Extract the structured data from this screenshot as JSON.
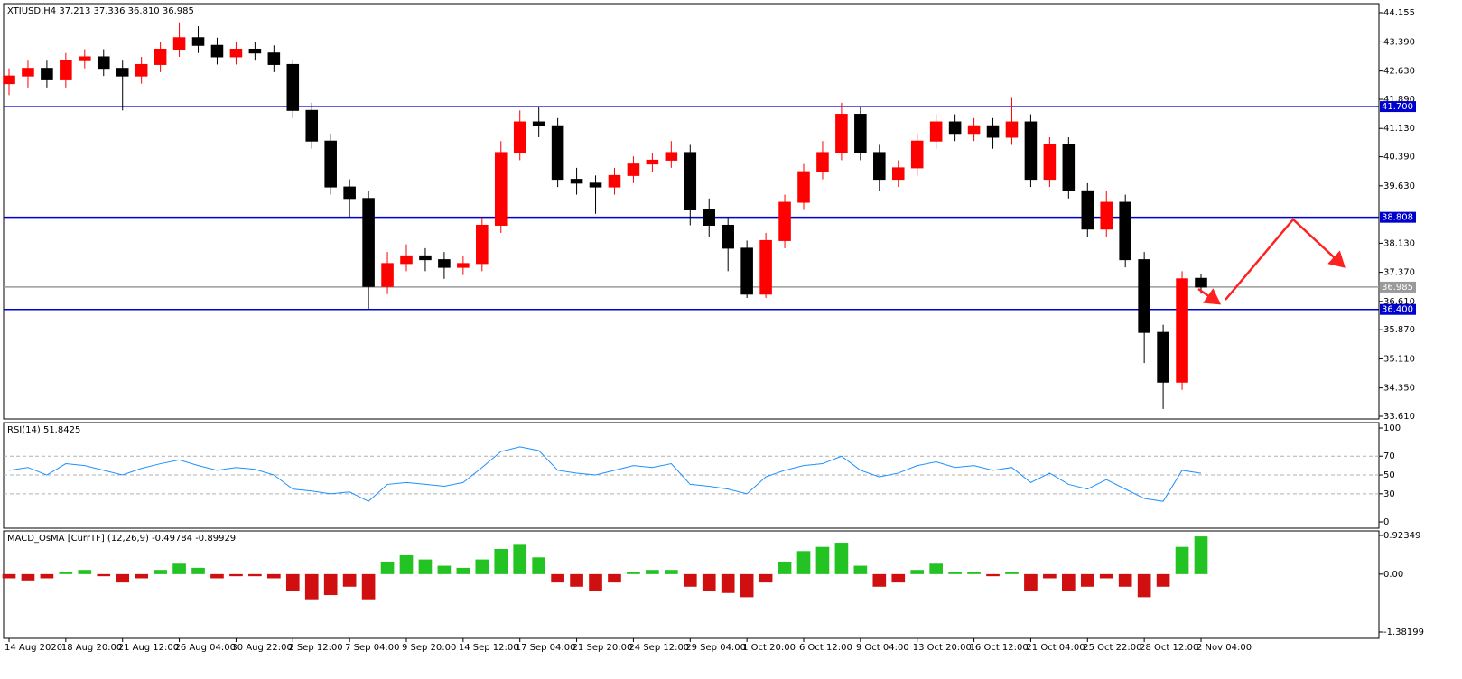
{
  "chart_data": [
    {
      "type": "candlestick",
      "title": "XTIUSD,H4  37.213 37.336 36.810 36.985",
      "categories": [
        "14 Aug 2020",
        null,
        null,
        "18 Aug 20:00",
        null,
        null,
        "21 Aug 12:00",
        null,
        null,
        "26 Aug 04:00",
        null,
        null,
        "30 Aug 22:00",
        null,
        null,
        "2 Sep 12:00",
        null,
        null,
        "7 Sep 04:00",
        null,
        null,
        "9 Sep 20:00",
        null,
        null,
        "14 Sep 12:00",
        null,
        null,
        "17 Sep 04:00",
        null,
        null,
        "21 Sep 20:00",
        null,
        null,
        "24 Sep 12:00",
        null,
        null,
        "29 Sep 04:00",
        null,
        null,
        "1 Oct 20:00",
        null,
        null,
        "6 Oct 12:00",
        null,
        null,
        "9 Oct 04:00",
        null,
        null,
        "13 Oct 20:00",
        null,
        null,
        "16 Oct 12:00",
        null,
        null,
        "21 Oct 04:00",
        null,
        null,
        "25 Oct 22:00",
        null,
        null,
        "28 Oct 12:00",
        null,
        null,
        "2 Nov 04:00"
      ],
      "open": [
        42.3,
        42.5,
        42.7,
        42.4,
        42.9,
        43.0,
        42.7,
        42.5,
        42.8,
        43.2,
        43.5,
        43.3,
        43.0,
        43.2,
        43.1,
        42.8,
        41.6,
        40.8,
        39.6,
        39.3,
        37.0,
        37.6,
        37.8,
        37.7,
        37.5,
        37.6,
        38.6,
        40.5,
        41.3,
        41.2,
        39.8,
        39.7,
        39.6,
        39.9,
        40.2,
        40.3,
        40.5,
        39.0,
        38.6,
        38.0,
        36.8,
        38.2,
        39.2,
        40.0,
        40.5,
        41.5,
        40.5,
        39.8,
        40.1,
        40.8,
        41.3,
        41.0,
        41.2,
        40.9,
        41.3,
        39.8,
        40.7,
        39.5,
        38.5,
        39.2,
        37.7,
        35.8,
        34.5,
        37.213
      ],
      "high": [
        42.7,
        42.9,
        42.9,
        43.1,
        43.2,
        43.2,
        42.9,
        43.0,
        43.4,
        43.9,
        43.8,
        43.5,
        43.4,
        43.4,
        43.3,
        42.9,
        41.8,
        41.0,
        39.8,
        39.5,
        37.9,
        38.1,
        38.0,
        37.9,
        37.8,
        38.8,
        40.8,
        41.6,
        41.7,
        41.4,
        40.1,
        39.9,
        40.1,
        40.4,
        40.5,
        40.8,
        40.7,
        39.3,
        38.8,
        38.2,
        38.4,
        39.4,
        40.2,
        40.8,
        41.8,
        41.7,
        40.7,
        40.3,
        41.0,
        41.5,
        41.5,
        41.4,
        41.4,
        41.95,
        41.5,
        40.9,
        40.9,
        39.7,
        39.5,
        39.4,
        37.9,
        36.0,
        37.4,
        37.336
      ],
      "low": [
        42.0,
        42.2,
        42.2,
        42.2,
        42.7,
        42.5,
        41.6,
        42.3,
        42.6,
        43.0,
        43.1,
        42.8,
        42.8,
        42.9,
        42.6,
        41.4,
        40.6,
        39.4,
        38.8,
        36.4,
        36.8,
        37.4,
        37.4,
        37.2,
        37.3,
        37.4,
        38.4,
        40.3,
        40.9,
        39.6,
        39.4,
        38.9,
        39.4,
        39.7,
        40.0,
        40.1,
        38.6,
        38.3,
        37.4,
        36.7,
        36.7,
        38.0,
        39.0,
        39.8,
        40.3,
        40.3,
        39.5,
        39.6,
        39.9,
        40.6,
        40.8,
        40.8,
        40.6,
        40.7,
        39.6,
        39.6,
        39.3,
        38.3,
        38.3,
        37.5,
        35.0,
        33.8,
        34.3,
        36.81
      ],
      "close": [
        42.5,
        42.7,
        42.4,
        42.9,
        43.0,
        42.7,
        42.5,
        42.8,
        43.2,
        43.5,
        43.3,
        43.0,
        43.2,
        43.1,
        42.8,
        41.6,
        40.8,
        39.6,
        39.3,
        37.0,
        37.6,
        37.8,
        37.7,
        37.5,
        37.6,
        38.6,
        40.5,
        41.3,
        41.2,
        39.8,
        39.7,
        39.6,
        39.9,
        40.2,
        40.3,
        40.5,
        39.0,
        38.6,
        38.0,
        36.8,
        38.2,
        39.2,
        40.0,
        40.5,
        41.5,
        40.5,
        39.8,
        40.1,
        40.8,
        41.3,
        41.0,
        41.2,
        40.9,
        41.3,
        39.8,
        40.7,
        39.5,
        38.5,
        39.2,
        37.7,
        35.8,
        34.5,
        37.2,
        36.985
      ],
      "up_color": "#ff0000",
      "down_color": "#000000",
      "ylim": [
        33.539,
        44.391
      ],
      "yticks": [
        44.155,
        {
          "value": 43.39,
          "label": "43.390"
        },
        {
          "value": 42.63,
          "label": "42.630"
        },
        {
          "value": 41.89,
          "label": "41.890"
        },
        {
          "value": 41.13,
          "label": "41.130"
        },
        {
          "value": 40.39,
          "label": "40.390"
        },
        {
          "value": 39.63,
          "label": "39.630"
        },
        {
          "value": 38.13,
          "label": "38.130"
        },
        {
          "value": 37.37,
          "label": "37.370"
        },
        {
          "value": 36.61,
          "label": "36.610"
        },
        {
          "value": 35.87,
          "label": "35.870"
        },
        {
          "value": 35.11,
          "label": "35.110"
        },
        {
          "value": 34.35,
          "label": "34.350"
        },
        {
          "value": 33.61,
          "label": "33.610"
        }
      ],
      "hlines": [
        {
          "value": 41.7,
          "label": "41.700",
          "color": "#0000cd"
        },
        {
          "value": 38.808,
          "label": "38.808",
          "color": "#0000cd"
        },
        {
          "value": 36.4,
          "label": "36.400",
          "color": "#0000cd"
        },
        {
          "value": 36.985,
          "label": "36.985",
          "color": "#9a9a9a"
        }
      ]
    },
    {
      "type": "line",
      "title": "RSI(14) 51.8425",
      "color": "#1e90ff",
      "values": [
        55,
        58,
        50,
        62,
        60,
        55,
        50,
        57,
        62,
        66,
        60,
        55,
        58,
        56,
        50,
        35,
        33,
        30,
        32,
        22,
        40,
        42,
        40,
        38,
        42,
        58,
        75,
        80,
        76,
        55,
        52,
        50,
        55,
        60,
        58,
        62,
        40,
        38,
        35,
        30,
        48,
        55,
        60,
        62,
        70,
        55,
        48,
        52,
        60,
        64,
        58,
        60,
        55,
        58,
        42,
        52,
        40,
        35,
        45,
        35,
        25,
        22,
        55,
        51.8425
      ],
      "ylim": [
        -6.7,
        105.8
      ],
      "yticks": [
        100,
        70,
        50,
        30,
        0
      ],
      "grid": true
    },
    {
      "type": "bar",
      "title": "MACD_OsMA [CurrTF] (12,26,9) -0.49784 -0.89929",
      "values": [
        -0.1,
        -0.15,
        -0.1,
        0.05,
        0.1,
        -0.05,
        -0.2,
        -0.1,
        0.1,
        0.25,
        0.15,
        -0.1,
        -0.05,
        -0.05,
        -0.1,
        -0.4,
        -0.6,
        -0.5,
        -0.3,
        -0.6,
        0.3,
        0.45,
        0.35,
        0.2,
        0.15,
        0.35,
        0.6,
        0.7,
        0.4,
        -0.2,
        -0.3,
        -0.4,
        -0.2,
        0.05,
        0.1,
        0.1,
        -0.3,
        -0.4,
        -0.45,
        -0.55,
        -0.2,
        0.3,
        0.55,
        0.65,
        0.75,
        0.2,
        -0.3,
        -0.2,
        0.1,
        0.25,
        0.05,
        0.05,
        -0.05,
        0.05,
        -0.4,
        -0.1,
        -0.4,
        -0.3,
        -0.1,
        -0.3,
        -0.55,
        -0.3,
        0.65,
        0.9
      ],
      "up_color": "#22c322",
      "down_color": "#d01010",
      "ylim": [
        -1.533,
        1.031
      ],
      "yticks": [
        0.92349,
        {
          "value": 0,
          "label": "0.00"
        },
        -1.38199
      ]
    }
  ]
}
